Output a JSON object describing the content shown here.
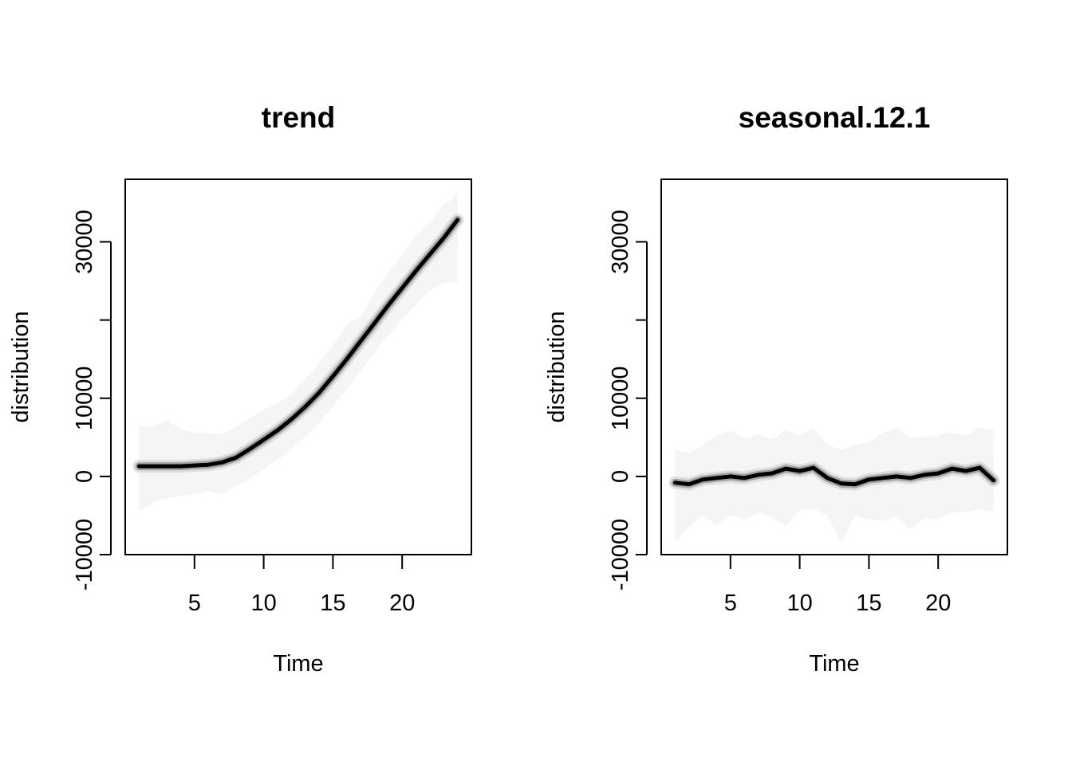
{
  "chart_data": [
    {
      "type": "area",
      "title": "trend",
      "xlabel": "Time",
      "ylabel": "distribution",
      "xlim": [
        0,
        25
      ],
      "ylim": [
        -10000,
        38000
      ],
      "xticks": [
        5,
        10,
        15,
        20
      ],
      "xtick_labels": [
        "5",
        "10",
        "15",
        "20"
      ],
      "yticks": [
        -10000,
        0,
        10000,
        20000,
        30000
      ],
      "ytick_labels": [
        "-10000",
        "0",
        "10000",
        "",
        "30000"
      ],
      "x": [
        1,
        2,
        3,
        4,
        5,
        6,
        7,
        8,
        9,
        10,
        11,
        12,
        13,
        14,
        15,
        16,
        17,
        18,
        19,
        20,
        21,
        22,
        23,
        24
      ],
      "median": [
        1300,
        1300,
        1300,
        1300,
        1400,
        1500,
        1800,
        2400,
        3500,
        4700,
        5900,
        7300,
        8900,
        10700,
        12800,
        15000,
        17300,
        19600,
        21900,
        24100,
        26300,
        28400,
        30500,
        32800
      ],
      "bands": [
        {
          "lower": [
            700,
            700,
            750,
            750,
            850,
            950,
            1250,
            1850,
            2900,
            4100,
            5300,
            6700,
            8300,
            10100,
            12200,
            14400,
            16700,
            19000,
            21300,
            23500,
            25700,
            27800,
            29900,
            32000
          ],
          "upper": [
            1900,
            1900,
            1850,
            1850,
            1950,
            2050,
            2350,
            2950,
            4100,
            5300,
            6500,
            7900,
            9500,
            11300,
            13400,
            15600,
            17900,
            20200,
            22500,
            24700,
            26900,
            29000,
            31100,
            33600
          ]
        },
        {
          "lower": [
            -300,
            -200,
            -100,
            0,
            100,
            300,
            600,
            1200,
            2200,
            3400,
            4600,
            6000,
            7600,
            9400,
            11500,
            13700,
            16000,
            18300,
            20600,
            22800,
            24900,
            27000,
            29000,
            31200
          ],
          "upper": [
            2900,
            2900,
            2900,
            2800,
            2800,
            2900,
            3100,
            3700,
            4800,
            6000,
            7200,
            8600,
            10200,
            12000,
            14100,
            16300,
            18600,
            20900,
            23200,
            25400,
            27700,
            29800,
            32000,
            34500
          ]
        },
        {
          "lower": [
            -1700,
            -1400,
            -1100,
            -900,
            -600,
            -300,
            0,
            500,
            1400,
            2600,
            3800,
            5200,
            6800,
            8600,
            10700,
            12900,
            15200,
            17500,
            19800,
            21900,
            24000,
            26000,
            28000,
            29800
          ],
          "upper": [
            4300,
            4200,
            4100,
            3900,
            3700,
            3600,
            3800,
            4500,
            5600,
            6800,
            8000,
            9400,
            11000,
            12800,
            14900,
            17100,
            19400,
            21700,
            24000,
            26300,
            28600,
            30800,
            33000,
            35600
          ]
        },
        {
          "lower": [
            -3500,
            -2600,
            -2200,
            -2000,
            -1600,
            -1200,
            -1200,
            -500,
            400,
            1600,
            2800,
            4200,
            5800,
            7600,
            9700,
            11900,
            14200,
            16500,
            18700,
            20800,
            22800,
            24600,
            26300,
            27400
          ],
          "upper": [
            5900,
            5500,
            6500,
            5100,
            4800,
            4700,
            4600,
            5300,
            6500,
            7700,
            8800,
            10000,
            11600,
            13500,
            15700,
            17800,
            20000,
            22400,
            24800,
            27200,
            29600,
            31600,
            33800,
            36500
          ]
        },
        {
          "lower": [
            -4500,
            -3300,
            -2800,
            -2500,
            -2200,
            -1800,
            -2300,
            -1200,
            -300,
            900,
            2100,
            3500,
            5100,
            6900,
            9000,
            11200,
            13500,
            15800,
            18000,
            20100,
            22000,
            23700,
            24800,
            24800
          ],
          "upper": [
            6500,
            6300,
            7300,
            6000,
            5600,
            5500,
            5400,
            6300,
            7500,
            8500,
            9400,
            10500,
            12500,
            14500,
            16800,
            19500,
            20500,
            23500,
            26000,
            28500,
            30800,
            32500,
            34800,
            35800
          ]
        }
      ],
      "colors": {
        "median": "#000000",
        "band": "#f5f5f5",
        "frame": "#000000",
        "background": "#ffffff"
      }
    },
    {
      "type": "area",
      "title": "seasonal.12.1",
      "xlabel": "Time",
      "ylabel": "distribution",
      "xlim": [
        0,
        25
      ],
      "ylim": [
        -10000,
        38000
      ],
      "xticks": [
        5,
        10,
        15,
        20
      ],
      "xtick_labels": [
        "5",
        "10",
        "15",
        "20"
      ],
      "yticks": [
        -10000,
        0,
        10000,
        20000,
        30000
      ],
      "ytick_labels": [
        "-10000",
        "0",
        "10000",
        "",
        "30000"
      ],
      "x": [
        1,
        2,
        3,
        4,
        5,
        6,
        7,
        8,
        9,
        10,
        11,
        12,
        13,
        14,
        15,
        16,
        17,
        18,
        19,
        20,
        21,
        22,
        23,
        24
      ],
      "median": [
        -800,
        -1000,
        -400,
        -200,
        0,
        -200,
        200,
        400,
        1000,
        700,
        1100,
        -200,
        -900,
        -1000,
        -400,
        -200,
        0,
        -200,
        200,
        400,
        1000,
        700,
        1100,
        -500
      ],
      "bands": [
        {
          "lower": [
            -1400,
            -1600,
            -1000,
            -800,
            -600,
            -800,
            -400,
            -200,
            400,
            100,
            500,
            -800,
            -1500,
            -1600,
            -1000,
            -800,
            -600,
            -800,
            -400,
            -200,
            400,
            100,
            500,
            -1100
          ],
          "upper": [
            -200,
            -400,
            200,
            400,
            600,
            400,
            800,
            1000,
            1600,
            1300,
            1700,
            400,
            -300,
            -400,
            200,
            400,
            600,
            400,
            800,
            1000,
            1600,
            1300,
            1700,
            100
          ]
        },
        {
          "lower": [
            -2100,
            -2300,
            -1700,
            -1500,
            -1300,
            -1500,
            -1100,
            -900,
            -300,
            -600,
            -200,
            -1500,
            -2200,
            -2300,
            -1700,
            -1500,
            -1300,
            -1500,
            -1100,
            -900,
            -300,
            -600,
            -200,
            -1800
          ],
          "upper": [
            500,
            300,
            900,
            1100,
            1300,
            1100,
            1500,
            1700,
            2300,
            2000,
            2400,
            1100,
            400,
            300,
            900,
            1100,
            1300,
            1100,
            1500,
            1700,
            2300,
            2000,
            2400,
            800
          ]
        },
        {
          "lower": [
            -3300,
            -3400,
            -2800,
            -2600,
            -2500,
            -2700,
            -2300,
            -2100,
            -1500,
            -1800,
            -1400,
            -2700,
            -3400,
            -3500,
            -2900,
            -2700,
            -2500,
            -2700,
            -2300,
            -2100,
            -1500,
            -1800,
            -1400,
            -3000
          ],
          "upper": [
            1700,
            1500,
            2100,
            2300,
            2500,
            2300,
            2700,
            2900,
            3500,
            3200,
            3600,
            2300,
            1600,
            1500,
            2100,
            2300,
            2500,
            2300,
            2700,
            2900,
            3500,
            3200,
            3600,
            2000
          ]
        },
        {
          "lower": [
            -5500,
            -4800,
            -4600,
            -4900,
            -4300,
            -4400,
            -4200,
            -4300,
            -3500,
            -3500,
            -3200,
            -4700,
            -6000,
            -5000,
            -4700,
            -4600,
            -4400,
            -4500,
            -4100,
            -4200,
            -3500,
            -3600,
            -3300,
            -4200
          ],
          "upper": [
            3200,
            2500,
            3700,
            4500,
            5500,
            4200,
            4500,
            4800,
            5500,
            4800,
            5800,
            3700,
            3200,
            3500,
            3900,
            4500,
            5500,
            4300,
            4500,
            5000,
            5200,
            4900,
            5800,
            5700
          ]
        },
        {
          "lower": [
            -8400,
            -6500,
            -5000,
            -6300,
            -5000,
            -5500,
            -4600,
            -5200,
            -6300,
            -4300,
            -4200,
            -5000,
            -8500,
            -5000,
            -5500,
            -5700,
            -5000,
            -6800,
            -5300,
            -5500,
            -4600,
            -4600,
            -4200,
            -4500
          ],
          "upper": [
            3400,
            3000,
            4000,
            5200,
            5900,
            4800,
            5400,
            4600,
            6000,
            5200,
            6200,
            4100,
            3400,
            4000,
            4400,
            5600,
            6200,
            5000,
            5100,
            5300,
            5600,
            5200,
            6200,
            6000
          ]
        }
      ],
      "colors": {
        "median": "#000000",
        "band": "#f5f5f5",
        "frame": "#000000",
        "background": "#ffffff"
      }
    }
  ]
}
